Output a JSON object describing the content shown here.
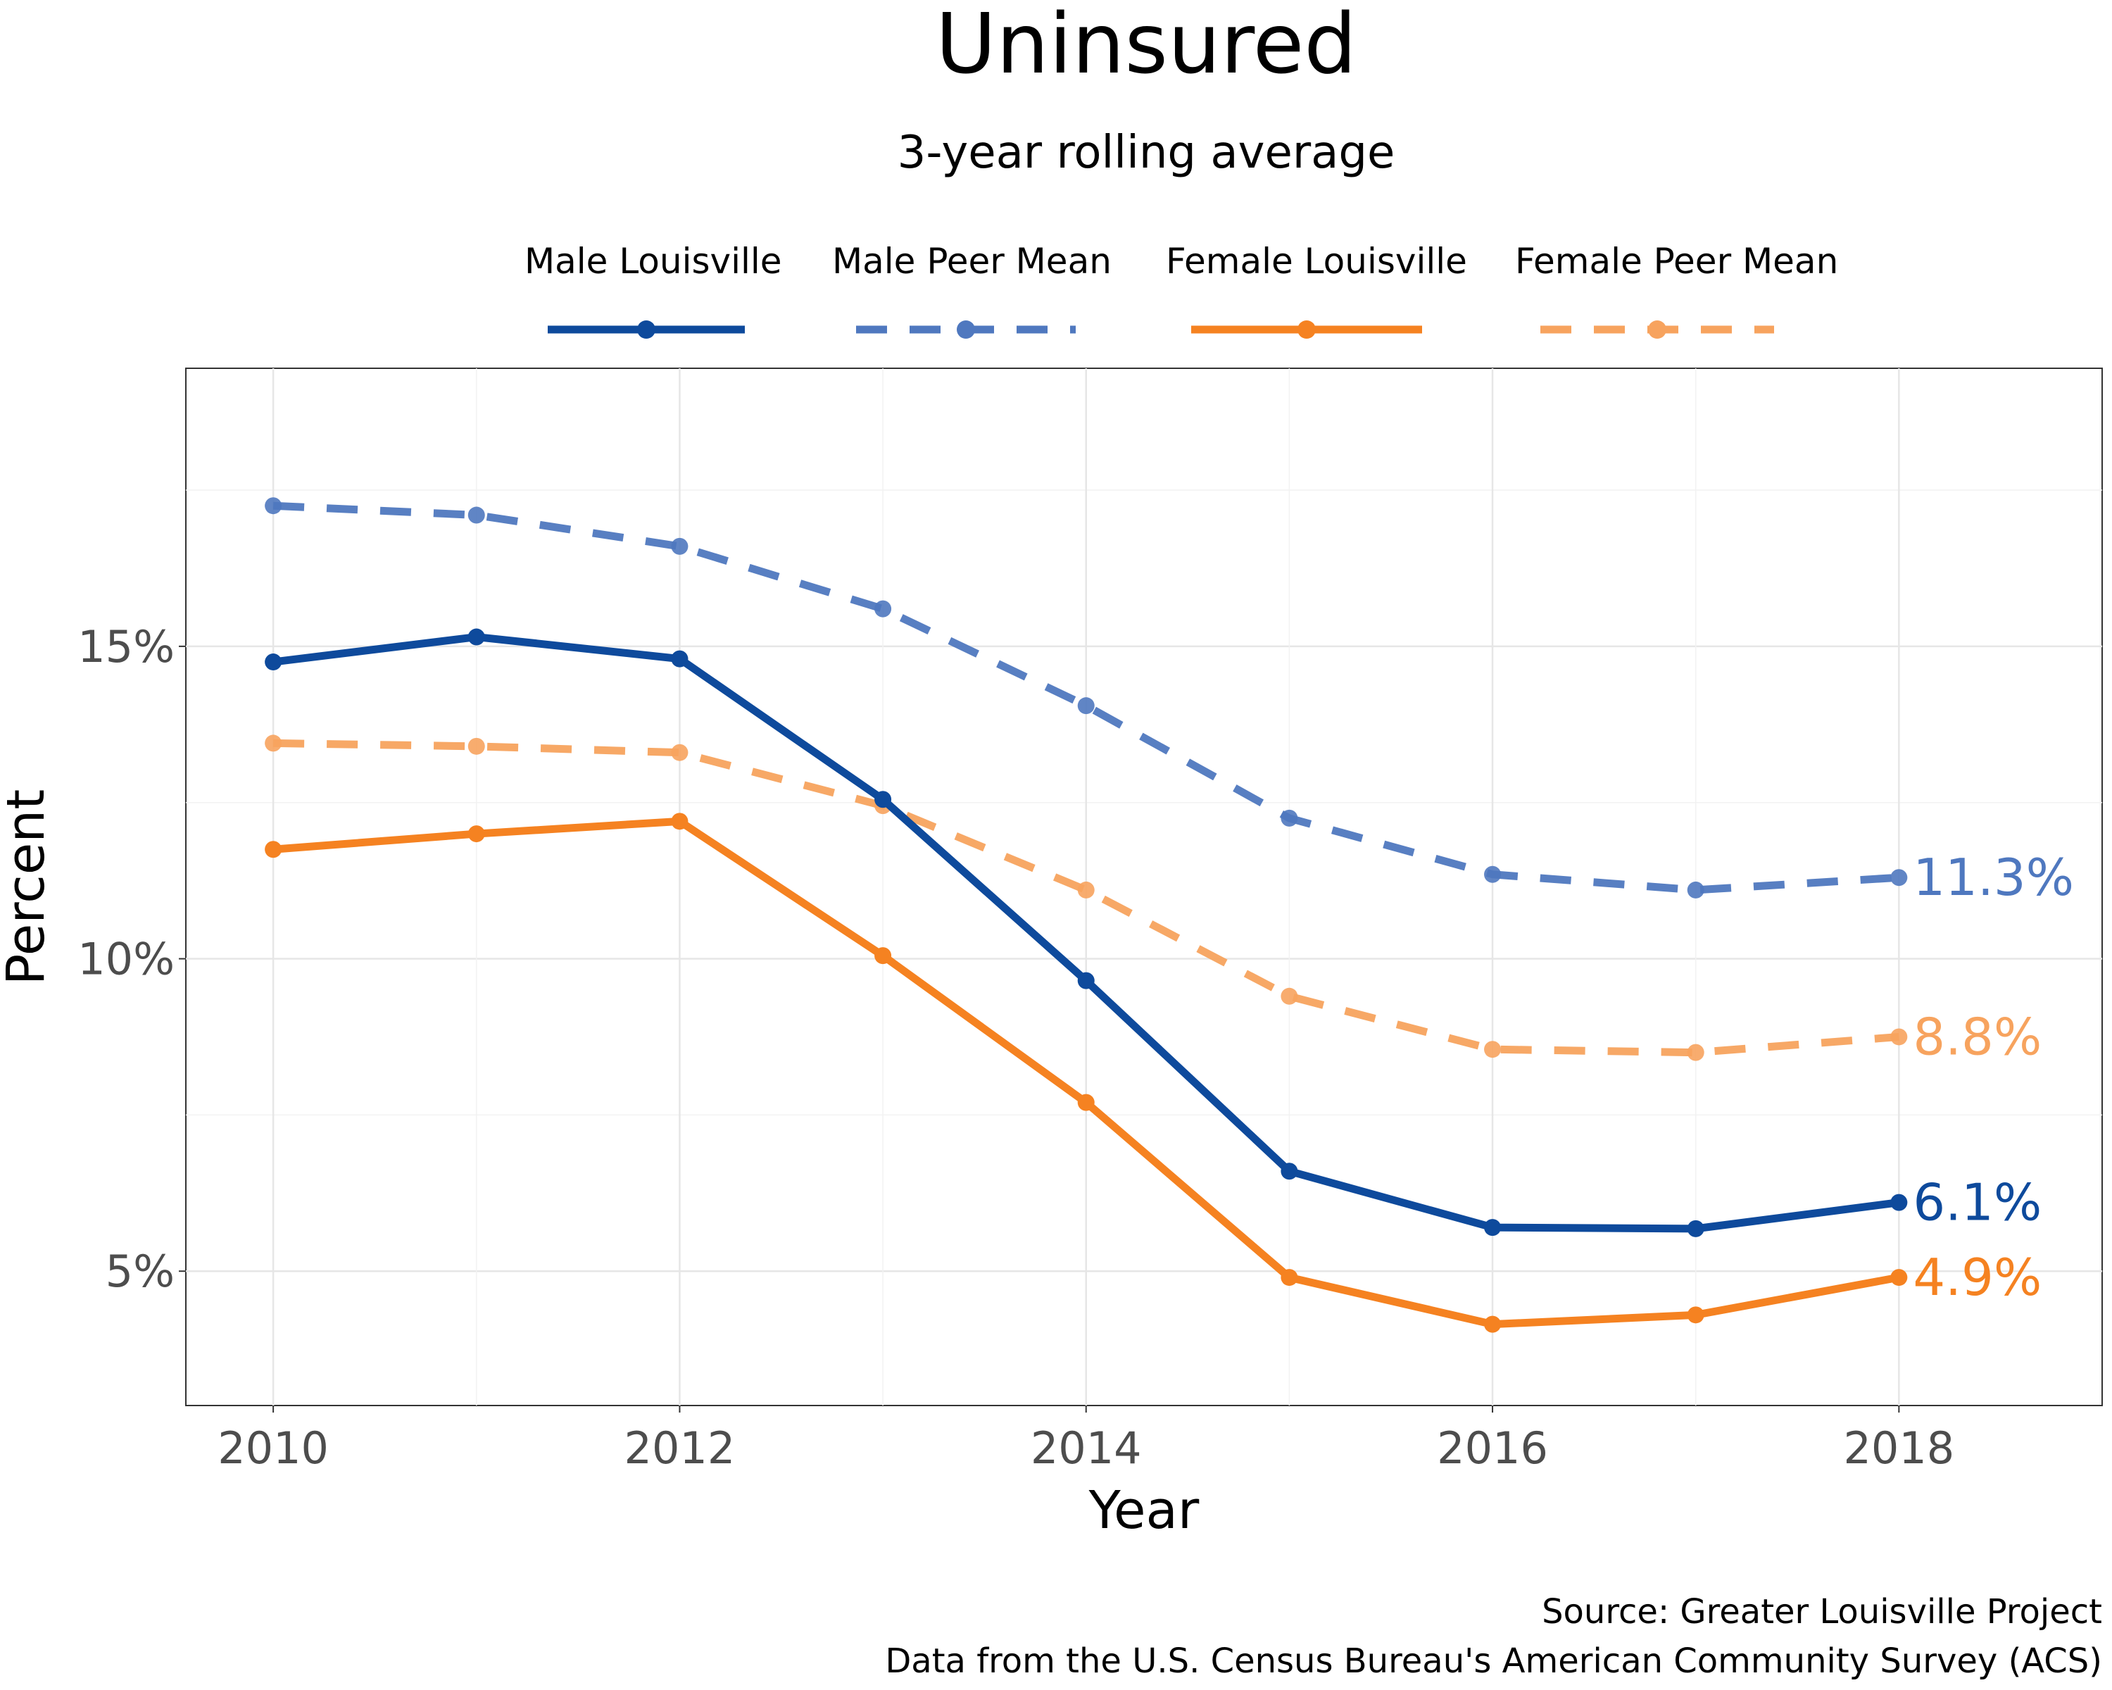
{
  "chart_data": {
    "type": "line",
    "title": "Uninsured",
    "subtitle": "3-year rolling average",
    "xlabel": "Year",
    "ylabel": "Percent",
    "x": [
      2010,
      2011,
      2012,
      2013,
      2014,
      2015,
      2016,
      2017,
      2018
    ],
    "x_ticks": [
      "2010",
      "2012",
      "2014",
      "2016",
      "2018"
    ],
    "y_ticks": [
      "5%",
      "10%",
      "15%"
    ],
    "xlim": [
      2009.57,
      2019.0
    ],
    "ylim": [
      2.85,
      19.45
    ],
    "grid": true,
    "legend_position": "top",
    "series": [
      {
        "name": "Male Louisville",
        "color": "#0e4a9c",
        "dashed": false,
        "values": [
          14.75,
          15.15,
          14.8,
          12.55,
          9.65,
          6.6,
          5.7,
          5.68,
          6.1
        ],
        "end_label": "6.1%"
      },
      {
        "name": "Male Peer Mean",
        "color": "#4f78bf",
        "dashed": true,
        "values": [
          17.25,
          17.1,
          16.6,
          15.6,
          14.05,
          12.25,
          11.35,
          11.1,
          11.3
        ],
        "end_label": "11.3%"
      },
      {
        "name": "Female Louisville",
        "color": "#f58221",
        "dashed": false,
        "values": [
          11.75,
          12.0,
          12.2,
          10.05,
          7.7,
          4.9,
          4.15,
          4.3,
          4.9
        ],
        "end_label": "4.9%"
      },
      {
        "name": "Female Peer Mean",
        "color": "#f7a35e",
        "dashed": true,
        "values": [
          13.45,
          13.4,
          13.3,
          12.45,
          11.1,
          9.4,
          8.55,
          8.5,
          8.75
        ],
        "end_label": "8.8%"
      }
    ]
  },
  "caption": {
    "line1": "Source: Greater Louisville Project",
    "line2": "Data from the U.S. Census Bureau's American Community Survey (ACS)"
  }
}
